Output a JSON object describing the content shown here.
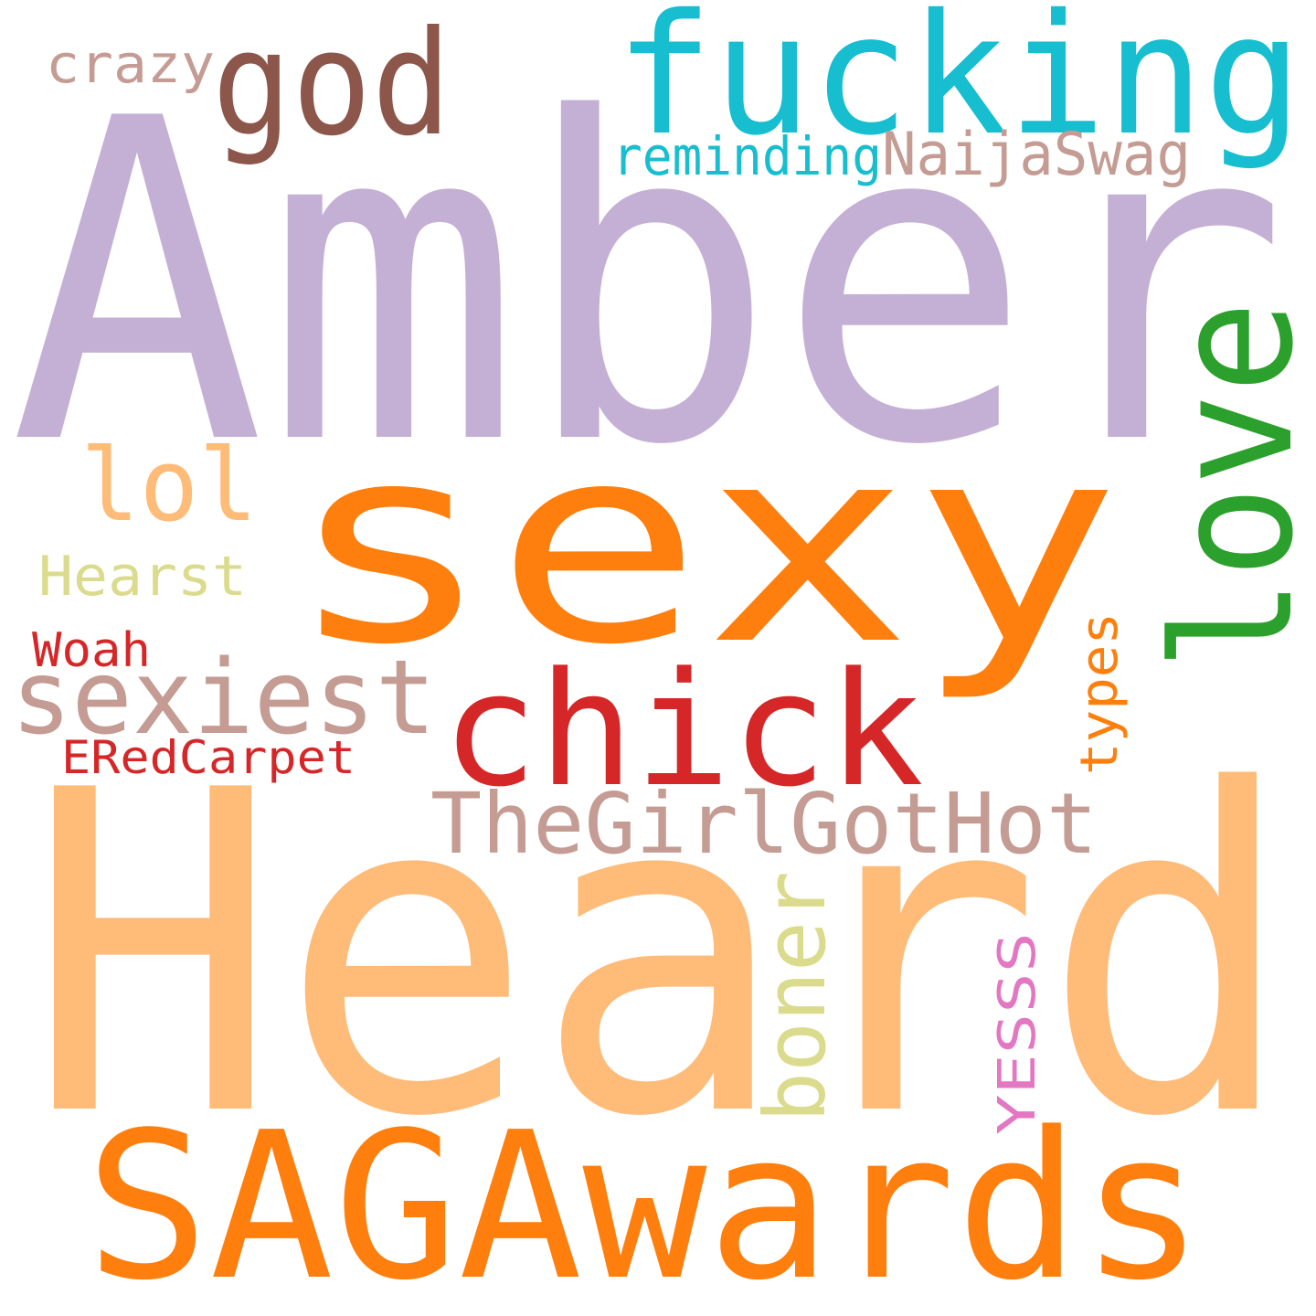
{
  "words": [
    {
      "text": "Amber",
      "color": "#c5b0d5"
    },
    {
      "text": "Heard",
      "color": "#ffbb78"
    },
    {
      "text": "sexy",
      "color": "#ff7f0e"
    },
    {
      "text": "SAGAwards",
      "color": "#ff7f0e"
    },
    {
      "text": "fucking",
      "color": "#17becf"
    },
    {
      "text": "love",
      "color": "#2ca02c"
    },
    {
      "text": "chick",
      "color": "#d62728"
    },
    {
      "text": "god",
      "color": "#8c564b"
    },
    {
      "text": "sexiest",
      "color": "#c49c94"
    },
    {
      "text": "TheGirlGotHot",
      "color": "#c49c94"
    },
    {
      "text": "lol",
      "color": "#ffbb78"
    },
    {
      "text": "boner",
      "color": "#dbdb8d"
    },
    {
      "text": "NaijaSwag",
      "color": "#c49c94"
    },
    {
      "text": "reminding",
      "color": "#17becf"
    },
    {
      "text": "crazy",
      "color": "#c49c94"
    },
    {
      "text": "Hearst",
      "color": "#dbdb8d"
    },
    {
      "text": "types",
      "color": "#ff7f0e"
    },
    {
      "text": "YESSS",
      "color": "#e377c2"
    },
    {
      "text": "Woah",
      "color": "#d62728"
    },
    {
      "text": "ERedCarpet",
      "color": "#d62728"
    }
  ]
}
